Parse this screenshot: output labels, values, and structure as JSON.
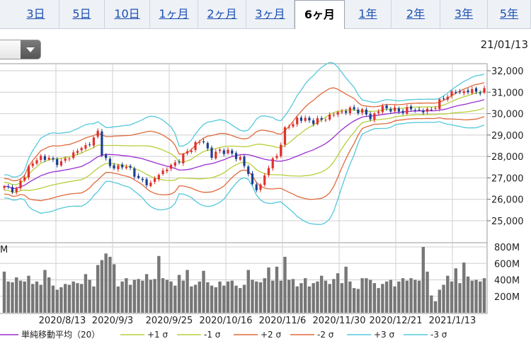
{
  "tabs": [
    {
      "label": "3日",
      "active": false
    },
    {
      "label": "5日",
      "active": false
    },
    {
      "label": "10日",
      "active": false
    },
    {
      "label": "1ヶ月",
      "active": false
    },
    {
      "label": "2ヶ月",
      "active": false
    },
    {
      "label": "3ヶ月",
      "active": false
    },
    {
      "label": "6ヶ月",
      "active": true
    },
    {
      "label": "1年",
      "active": false
    },
    {
      "label": "2年",
      "active": false
    },
    {
      "label": "3年",
      "active": false
    },
    {
      "label": "5年",
      "active": false
    }
  ],
  "select": {
    "value": ""
  },
  "date_label": "21/01/13",
  "colors": {
    "up": "#e0302d",
    "down": "#1c3f8f",
    "sma": "#9b2fd1",
    "s1": "#b7cf3a",
    "s2": "#e06a3c",
    "s3": "#55c8dc",
    "volume": "#777777"
  },
  "chart_data": {
    "type": "candlestick",
    "price_axis": {
      "min": 25000,
      "max": 32000,
      "ticks": [
        "25,000",
        "26,000",
        "27,000",
        "28,000",
        "29,000",
        "30,000",
        "31,000",
        "32,000"
      ]
    },
    "volume_axis": {
      "unit": "M",
      "ticks": [
        "200M",
        "400M",
        "600M",
        "800M"
      ],
      "range": [
        0,
        800
      ]
    },
    "volume_top_label": "M",
    "x_labels": [
      "2020/8/13",
      "2020/9/3",
      "2020/9/25",
      "2020/10/16",
      "2020/11/6",
      "2020/11/30",
      "2020/12/21",
      "2021/1/13"
    ],
    "anchors": [
      [
        0,
        26550
      ],
      [
        3,
        26450
      ],
      [
        6,
        27500
      ],
      [
        9,
        28000
      ],
      [
        12,
        27800
      ],
      [
        14,
        27700
      ],
      [
        17,
        28150
      ],
      [
        20,
        28500
      ],
      [
        22,
        28800
      ],
      [
        23,
        29150
      ],
      [
        24,
        28200
      ],
      [
        26,
        27500
      ],
      [
        28,
        27550
      ],
      [
        31,
        27450
      ],
      [
        33,
        26900
      ],
      [
        35,
        26800
      ],
      [
        36,
        26700
      ],
      [
        38,
        27200
      ],
      [
        41,
        27550
      ],
      [
        44,
        28000
      ],
      [
        47,
        28600
      ],
      [
        49,
        28700
      ],
      [
        51,
        28000
      ],
      [
        53,
        28300
      ],
      [
        55,
        28200
      ],
      [
        58,
        27900
      ],
      [
        60,
        27200
      ],
      [
        61,
        26700
      ],
      [
        62,
        26500
      ],
      [
        63,
        26600
      ],
      [
        65,
        27600
      ],
      [
        67,
        28000
      ],
      [
        69,
        29300
      ],
      [
        71,
        29500
      ],
      [
        72,
        29800
      ],
      [
        74,
        29700
      ],
      [
        76,
        29650
      ],
      [
        78,
        29700
      ],
      [
        80,
        29900
      ],
      [
        83,
        30100
      ],
      [
        86,
        30200
      ],
      [
        88,
        30100
      ],
      [
        90,
        29800
      ],
      [
        93,
        30300
      ],
      [
        95,
        30200
      ],
      [
        97,
        30100
      ],
      [
        99,
        30200
      ],
      [
        101,
        30200
      ],
      [
        103,
        30100
      ],
      [
        105,
        30200
      ],
      [
        108,
        30700
      ],
      [
        109,
        30900
      ],
      [
        111,
        31000
      ],
      [
        114,
        31050
      ],
      [
        116,
        31050
      ]
    ],
    "volumes": [
      500,
      380,
      370,
      430,
      390,
      380,
      450,
      350,
      380,
      340,
      520,
      430,
      330,
      280,
      310,
      350,
      340,
      380,
      360,
      350,
      470,
      400,
      320,
      580,
      640,
      720,
      680,
      590,
      320,
      380,
      420,
      340,
      400,
      410,
      390,
      470,
      400,
      410,
      690,
      420,
      400,
      380,
      330,
      460,
      390,
      520,
      320,
      340,
      380,
      510,
      370,
      330,
      310,
      380,
      330,
      380,
      390,
      330,
      300,
      340,
      520,
      400,
      380,
      370,
      420,
      550,
      390,
      560,
      390,
      680,
      400,
      410,
      320,
      360,
      420,
      320,
      360,
      380,
      450,
      390,
      350,
      410,
      480,
      360,
      560,
      380,
      300,
      290,
      420,
      420,
      400,
      360,
      300,
      350,
      380,
      400,
      320,
      380,
      420,
      390,
      420,
      400,
      390,
      800,
      500,
      210,
      140,
      280,
      340,
      450,
      380,
      540,
      360,
      610,
      440,
      390,
      400,
      380,
      420
    ],
    "legend": [
      {
        "label": "単純移動平均（20）",
        "key": "sma"
      },
      {
        "label": "+1 σ",
        "key": "p1"
      },
      {
        "label": "-1 σ",
        "key": "m1"
      },
      {
        "label": "+2 σ",
        "key": "p2"
      },
      {
        "label": "-2 σ",
        "key": "m2"
      },
      {
        "label": "+3 σ",
        "key": "p3"
      },
      {
        "label": "-3 σ",
        "key": "m3"
      }
    ]
  }
}
